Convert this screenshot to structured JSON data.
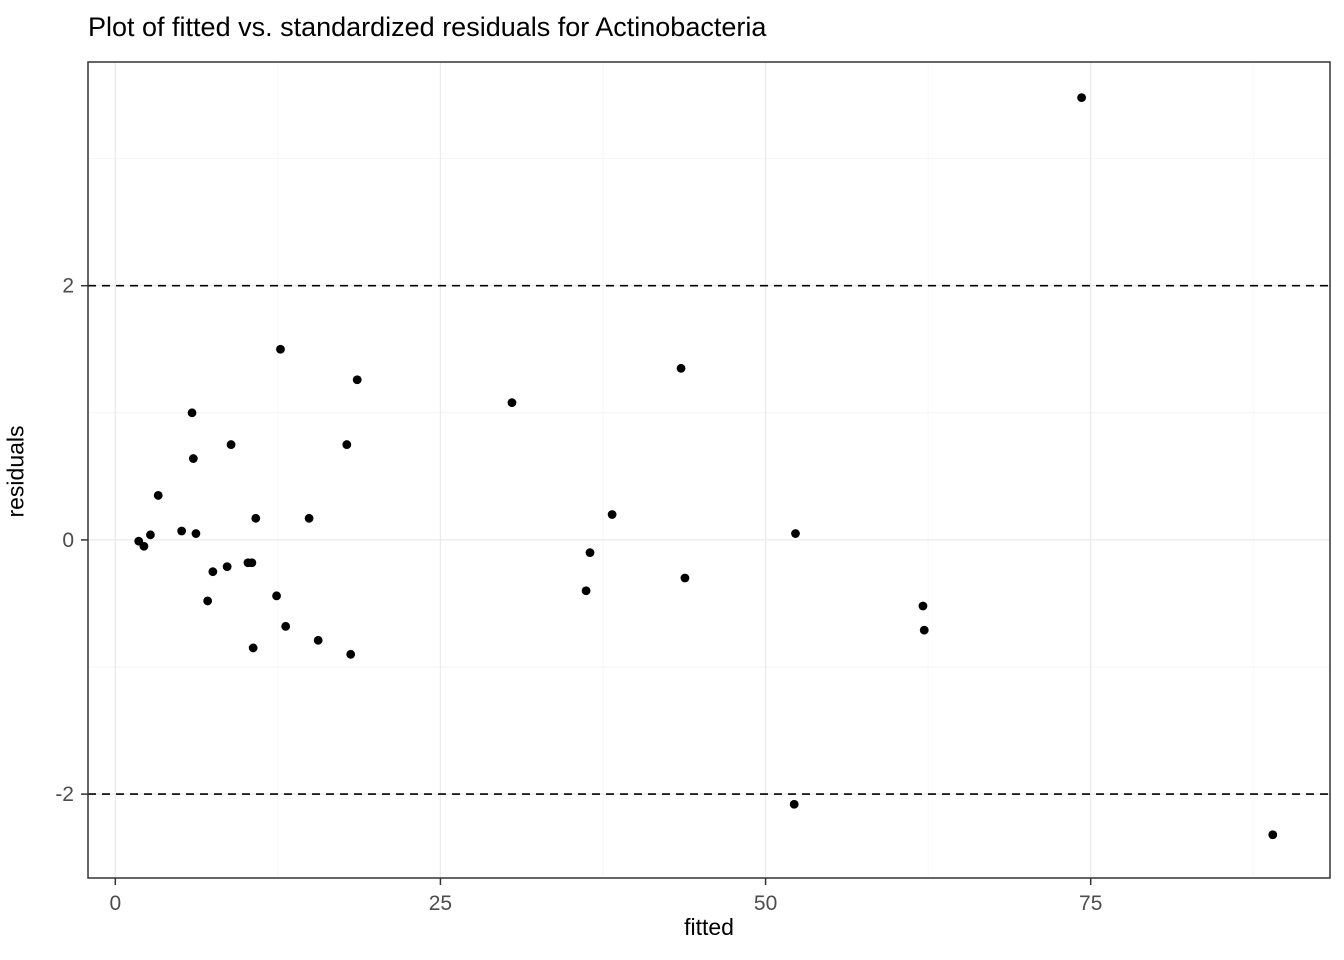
{
  "chart_data": {
    "type": "scatter",
    "title": "Plot of fitted vs. standardized residuals for Actinobacteria",
    "xlabel": "fitted",
    "ylabel": "residuals",
    "xlim": [
      -2.1,
      93.4
    ],
    "ylim": [
      -2.66,
      3.76
    ],
    "xticks": [
      0,
      25,
      50,
      75
    ],
    "yticks": [
      -2,
      0,
      2
    ],
    "x_minor": [
      12.5,
      37.5,
      62.5,
      87.5
    ],
    "y_minor": [
      -1,
      1,
      3
    ],
    "grid": true,
    "legend_position": "none",
    "hlines": [
      {
        "y": 2,
        "style": "dashed"
      },
      {
        "y": -2,
        "style": "dashed"
      }
    ],
    "points": [
      [
        74.3,
        3.48
      ],
      [
        12.7,
        1.5
      ],
      [
        43.5,
        1.35
      ],
      [
        18.6,
        1.26
      ],
      [
        30.5,
        1.08
      ],
      [
        5.9,
        1.0
      ],
      [
        8.9,
        0.75
      ],
      [
        17.8,
        0.75
      ],
      [
        6.0,
        0.64
      ],
      [
        3.3,
        0.35
      ],
      [
        38.2,
        0.2
      ],
      [
        10.8,
        0.17
      ],
      [
        14.9,
        0.17
      ],
      [
        5.1,
        0.07
      ],
      [
        52.3,
        0.05
      ],
      [
        6.2,
        0.05
      ],
      [
        2.7,
        0.04
      ],
      [
        1.8,
        -0.01
      ],
      [
        2.2,
        -0.05
      ],
      [
        36.5,
        -0.1
      ],
      [
        10.2,
        -0.18
      ],
      [
        10.5,
        -0.18
      ],
      [
        8.6,
        -0.21
      ],
      [
        7.5,
        -0.25
      ],
      [
        43.8,
        -0.3
      ],
      [
        36.2,
        -0.4
      ],
      [
        12.4,
        -0.44
      ],
      [
        7.1,
        -0.48
      ],
      [
        62.1,
        -0.52
      ],
      [
        13.1,
        -0.68
      ],
      [
        62.2,
        -0.71
      ],
      [
        15.6,
        -0.79
      ],
      [
        10.6,
        -0.85
      ],
      [
        18.1,
        -0.9
      ],
      [
        52.2,
        -2.08
      ],
      [
        89.0,
        -2.32
      ]
    ],
    "colors": {
      "point": "#000000",
      "grid_major": "#ebebeb",
      "grid_minor": "#f6f6f6",
      "panel_border": "#333333",
      "axis_tick": "#333333",
      "tick_label": "#4d4d4d",
      "dashed_line": "#000000",
      "background": "#ffffff"
    }
  }
}
